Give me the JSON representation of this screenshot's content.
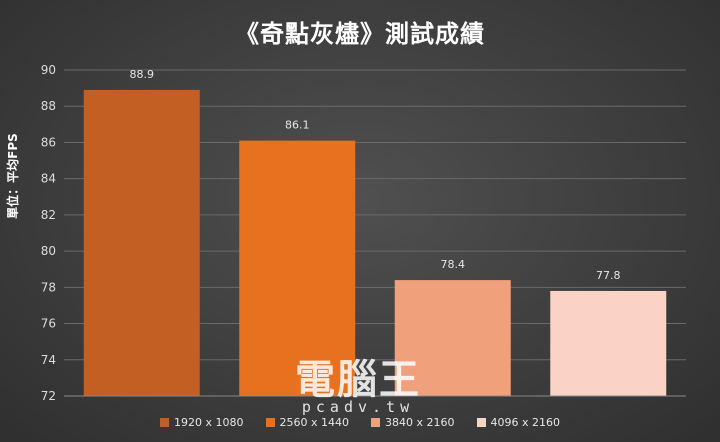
{
  "chart_data": {
    "type": "bar",
    "title": "《奇點灰燼》測試成績",
    "ylabel": "單位：平均FPS",
    "xlabel": "",
    "ylim": [
      72,
      90
    ],
    "yticks": [
      72,
      74,
      76,
      78,
      80,
      82,
      84,
      86,
      88,
      90
    ],
    "grid": true,
    "legend_position": "bottom",
    "series": [
      {
        "name": "1920 x 1080",
        "value": 88.9,
        "label": "88.9",
        "color": "#c35f22"
      },
      {
        "name": "2560 x 1440",
        "value": 86.1,
        "label": "86.1",
        "color": "#e8711f"
      },
      {
        "name": "3840 x 2160",
        "value": 78.4,
        "label": "78.4",
        "color": "#f0a07a"
      },
      {
        "name": "4096 x 2160",
        "value": 77.8,
        "label": "77.8",
        "color": "#fbd3c6"
      }
    ]
  },
  "watermark": {
    "text": "電腦王",
    "url": "pcadv.tw"
  }
}
